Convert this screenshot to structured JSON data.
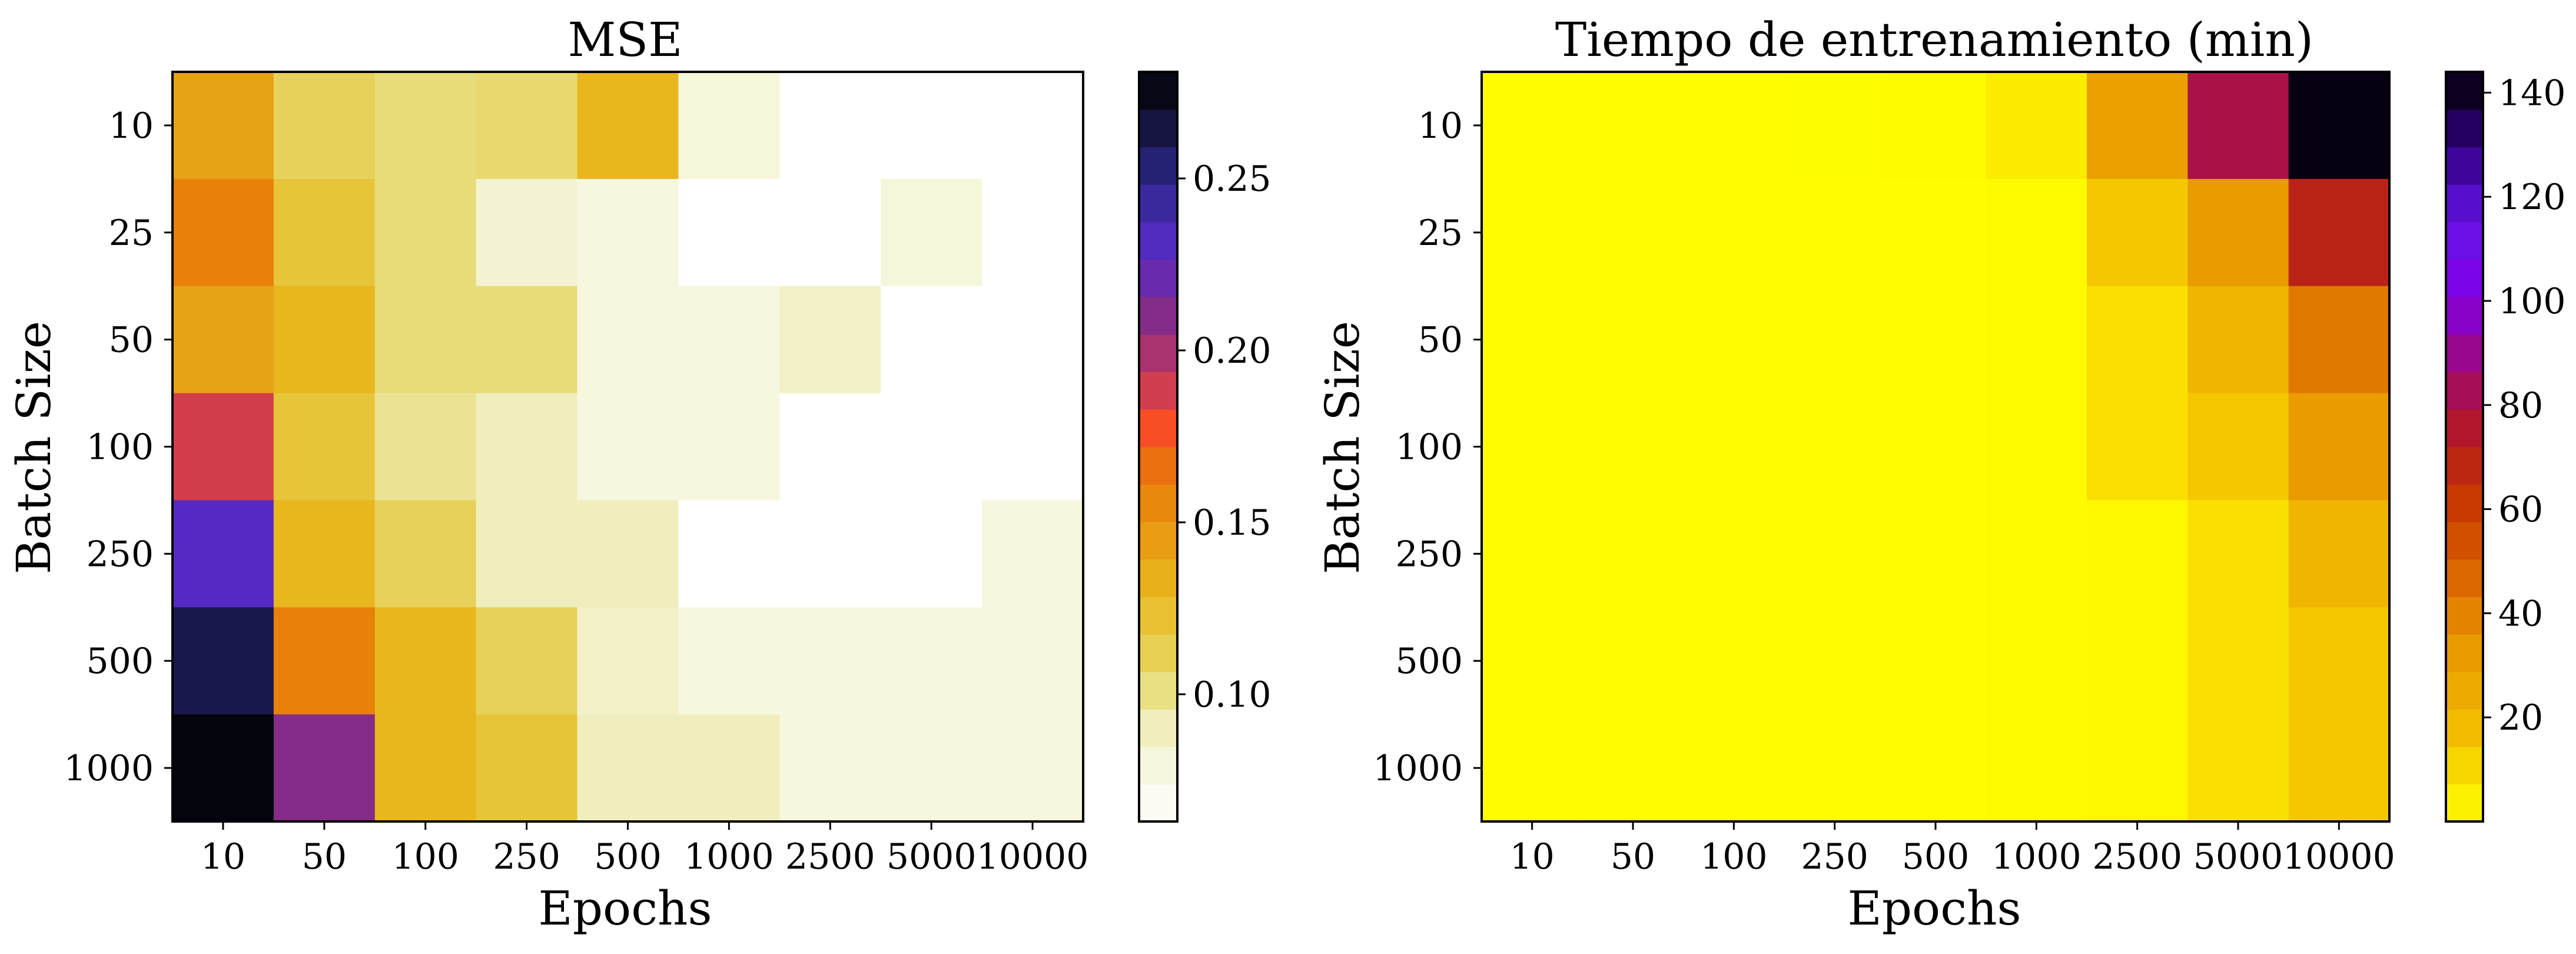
{
  "chart_data": [
    {
      "type": "heatmap",
      "title": "MSE",
      "xlabel": "Epochs",
      "ylabel": "Batch Size",
      "x_categories": [
        "10",
        "50",
        "100",
        "250",
        "500",
        "1000",
        "2500",
        "5000",
        "10000"
      ],
      "y_categories": [
        "10",
        "25",
        "50",
        "100",
        "250",
        "500",
        "1000"
      ],
      "values": [
        [
          0.142,
          0.11,
          0.103,
          0.105,
          0.13,
          0.08,
          0.06,
          0.06,
          0.06
        ],
        [
          0.16,
          0.12,
          0.103,
          0.085,
          0.078,
          0.06,
          0.06,
          0.08,
          0.06
        ],
        [
          0.142,
          0.13,
          0.103,
          0.103,
          0.078,
          0.078,
          0.088,
          0.06,
          0.06
        ],
        [
          0.188,
          0.12,
          0.098,
          0.09,
          0.078,
          0.078,
          0.06,
          0.06,
          0.06
        ],
        [
          0.23,
          0.13,
          0.11,
          0.09,
          0.09,
          0.06,
          0.06,
          0.06,
          0.078
        ],
        [
          0.262,
          0.16,
          0.13,
          0.11,
          0.088,
          0.078,
          0.078,
          0.078,
          0.078
        ],
        [
          0.278,
          0.21,
          0.13,
          0.12,
          0.09,
          0.09,
          0.078,
          0.078,
          0.078
        ]
      ],
      "colorbar": {
        "vmin": 0.063,
        "vmax": 0.281,
        "ticks": [
          0.25,
          0.2,
          0.15,
          0.1
        ],
        "tick_labels": [
          "0.25",
          "0.20",
          "0.15",
          "0.10"
        ]
      },
      "colormap": "CMRmap_r"
    },
    {
      "type": "heatmap",
      "title": "Tiempo de entrenamiento (min)",
      "xlabel": "Epochs",
      "ylabel": "Batch Size",
      "x_categories": [
        "10",
        "50",
        "100",
        "250",
        "500",
        "1000",
        "2500",
        "5000",
        "10000"
      ],
      "y_categories": [
        "10",
        "25",
        "50",
        "100",
        "250",
        "500",
        "1000"
      ],
      "values": [
        [
          0.5,
          0.5,
          0.5,
          0.8,
          1.0,
          5,
          30,
          80,
          142
        ],
        [
          0.5,
          0.5,
          0.5,
          0.5,
          0.5,
          1,
          15,
          32,
          70
        ],
        [
          0.5,
          0.5,
          0.5,
          0.5,
          0.5,
          1,
          8,
          20,
          42
        ],
        [
          0.5,
          0.5,
          0.5,
          0.5,
          0.5,
          1,
          8,
          15,
          32
        ],
        [
          0.5,
          0.5,
          0.5,
          0.5,
          0.5,
          1,
          2,
          8,
          20
        ],
        [
          0.5,
          0.5,
          0.5,
          0.5,
          0.5,
          1,
          2,
          8,
          15
        ],
        [
          0.5,
          0.5,
          0.5,
          0.5,
          0.5,
          1,
          2,
          8,
          15
        ]
      ],
      "colorbar": {
        "vmin": 0,
        "vmax": 144,
        "ticks": [
          140,
          120,
          100,
          80,
          60,
          40,
          20
        ],
        "tick_labels": [
          "140",
          "120",
          "100",
          "80",
          "60",
          "40",
          "20"
        ]
      },
      "colormap": "gnuplot_r"
    }
  ]
}
